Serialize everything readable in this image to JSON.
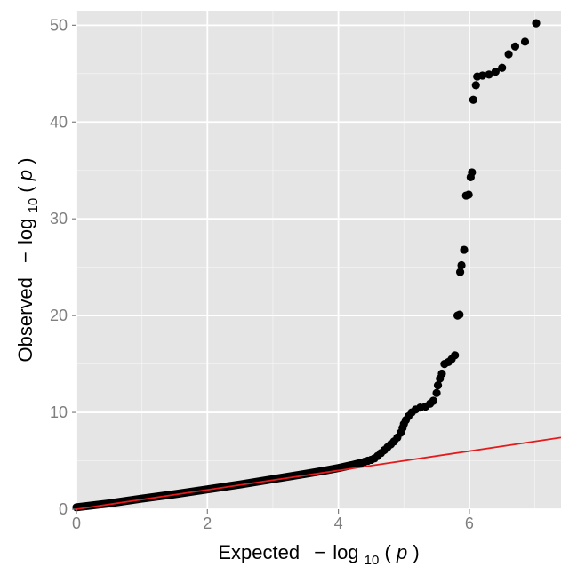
{
  "chart_data": {
    "type": "scatter",
    "title": "",
    "xlabel": {
      "prefix": "Expected",
      "minus": "−",
      "log": "log",
      "sub": "10",
      "arg": "(",
      "var": "p",
      "close": ")"
    },
    "ylabel": {
      "prefix": "Observed",
      "minus": "−",
      "log": "log",
      "sub": "10",
      "arg": "(",
      "var": "p",
      "close": ")"
    },
    "xlim": [
      0,
      7.4
    ],
    "ylim": [
      0,
      51.5
    ],
    "x_ticks": [
      0,
      2,
      4,
      6
    ],
    "y_ticks": [
      0,
      10,
      20,
      30,
      40,
      50
    ],
    "x_tick_labels": [
      "0",
      "2",
      "4",
      "6"
    ],
    "y_tick_labels": [
      "0",
      "10",
      "20",
      "30",
      "40",
      "50"
    ],
    "grid": true,
    "panel_background": "#e5e5e5",
    "gridline_color": "#ffffff",
    "point_color": "#000000",
    "reference_line": {
      "color": "#e41a1c",
      "x": [
        0,
        7.4
      ],
      "y": [
        0,
        7.4
      ]
    },
    "bulk_band": {
      "x": [
        0.0,
        0.5,
        1.0,
        1.5,
        2.0,
        2.5,
        3.0,
        3.5,
        3.8,
        4.0,
        4.2,
        4.35
      ],
      "y": [
        0.2,
        0.6,
        1.1,
        1.55,
        2.05,
        2.55,
        3.1,
        3.65,
        4.0,
        4.25,
        4.55,
        4.8
      ]
    },
    "points": [
      [
        4.35,
        4.8
      ],
      [
        4.4,
        4.9
      ],
      [
        4.45,
        5.0
      ],
      [
        4.5,
        5.1
      ],
      [
        4.55,
        5.25
      ],
      [
        4.6,
        5.5
      ],
      [
        4.65,
        5.8
      ],
      [
        4.7,
        6.1
      ],
      [
        4.75,
        6.4
      ],
      [
        4.8,
        6.7
      ],
      [
        4.85,
        7.0
      ],
      [
        4.9,
        7.4
      ],
      [
        4.95,
        7.9
      ],
      [
        4.98,
        8.4
      ],
      [
        5.0,
        8.8
      ],
      [
        5.03,
        9.2
      ],
      [
        5.07,
        9.6
      ],
      [
        5.12,
        10.0
      ],
      [
        5.18,
        10.3
      ],
      [
        5.25,
        10.5
      ],
      [
        5.33,
        10.6
      ],
      [
        5.4,
        10.9
      ],
      [
        5.45,
        11.2
      ],
      [
        5.5,
        12.0
      ],
      [
        5.52,
        12.8
      ],
      [
        5.55,
        13.5
      ],
      [
        5.58,
        14.0
      ],
      [
        5.62,
        15.0
      ],
      [
        5.68,
        15.2
      ],
      [
        5.73,
        15.5
      ],
      [
        5.78,
        15.9
      ],
      [
        5.82,
        20.0
      ],
      [
        5.85,
        20.1
      ],
      [
        5.86,
        24.5
      ],
      [
        5.88,
        25.2
      ],
      [
        5.92,
        26.8
      ],
      [
        5.95,
        32.4
      ],
      [
        5.99,
        32.5
      ],
      [
        6.02,
        34.3
      ],
      [
        6.04,
        34.8
      ],
      [
        6.06,
        42.3
      ],
      [
        6.1,
        43.8
      ],
      [
        6.12,
        44.7
      ],
      [
        6.2,
        44.8
      ],
      [
        6.3,
        44.9
      ],
      [
        6.4,
        45.2
      ],
      [
        6.5,
        45.6
      ],
      [
        6.6,
        47.0
      ],
      [
        6.7,
        47.8
      ],
      [
        6.85,
        48.3
      ],
      [
        7.02,
        50.2
      ]
    ]
  }
}
